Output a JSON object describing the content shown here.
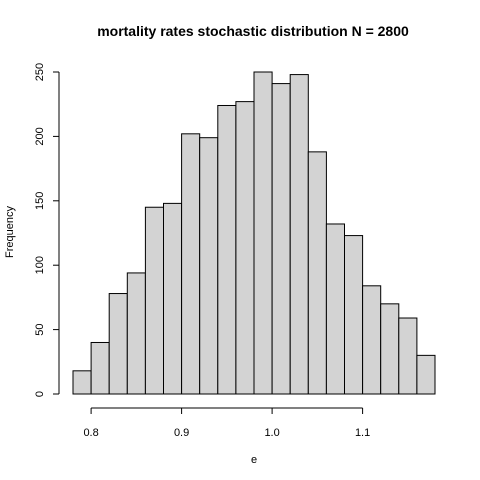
{
  "chart_data": {
    "type": "bar",
    "title": "mortality rates stochastic distribution N =  2800",
    "xlabel": "e",
    "ylabel": "Frequency",
    "bin_edges": [
      0.78,
      0.8,
      0.82,
      0.84,
      0.86,
      0.88,
      0.9,
      0.92,
      0.94,
      0.96,
      0.98,
      1.0,
      1.02,
      1.04,
      1.06,
      1.08,
      1.1,
      1.12,
      1.14,
      1.16,
      1.18
    ],
    "values": [
      18,
      40,
      78,
      94,
      145,
      148,
      202,
      199,
      224,
      227,
      250,
      241,
      248,
      188,
      132,
      123,
      84,
      70,
      59,
      30
    ],
    "xlim": [
      0.78,
      1.18
    ],
    "ylim": [
      0,
      250
    ],
    "xticks": [
      "0.8",
      "0.9",
      "1.0",
      "1.1"
    ],
    "yticks": [
      "0",
      "50",
      "100",
      "150",
      "200",
      "250"
    ],
    "grid": false,
    "legend": false
  }
}
